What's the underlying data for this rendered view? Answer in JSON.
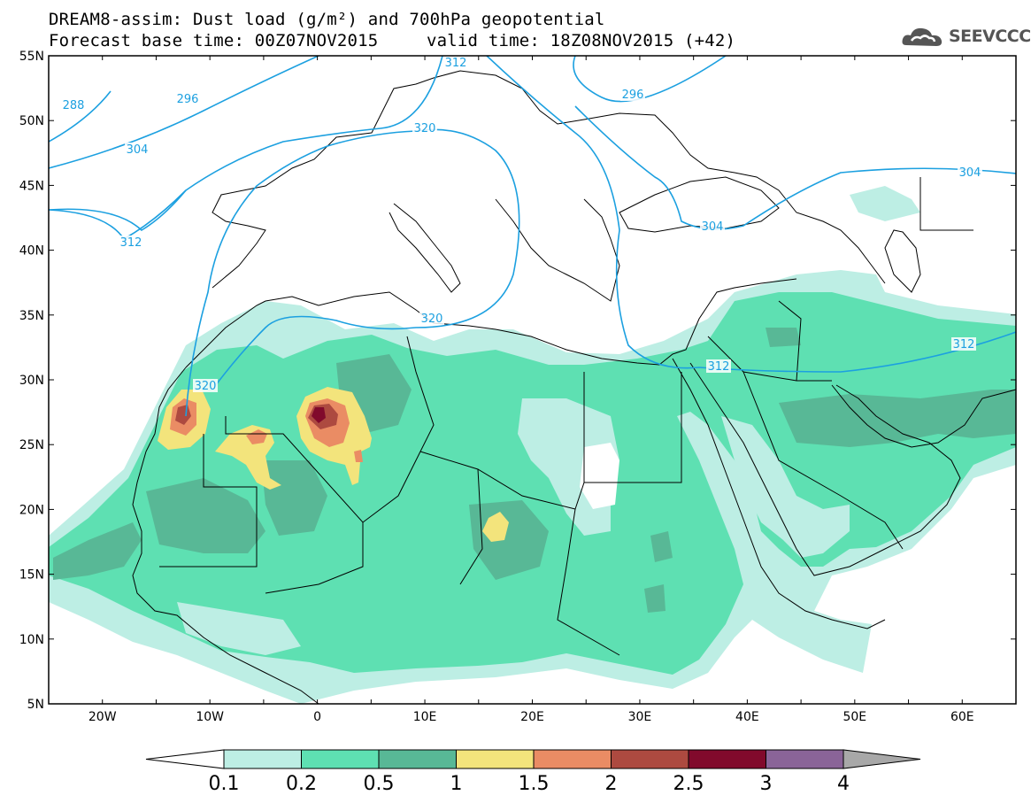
{
  "header": {
    "title_line1": "DREAM8-assim: Dust load (g/m²) and 700hPa geopotential",
    "base_time": "Forecast base time: 00Z07NOV2015",
    "valid_time": "valid time: 18Z08NOV2015 (+42)"
  },
  "logo": {
    "name": "cloud-logo-icon",
    "text": "SEEVCCC"
  },
  "map": {
    "lat_labels": [
      "55N",
      "50N",
      "45N",
      "40N",
      "35N",
      "30N",
      "25N",
      "20N",
      "15N",
      "10N",
      "5N"
    ],
    "lon_labels": [
      "20W",
      "10W",
      "0",
      "10E",
      "20E",
      "30E",
      "40E",
      "50E",
      "60E"
    ],
    "geopotential_labels": [
      "288",
      "296",
      "304",
      "312",
      "320",
      "320",
      "320",
      "296",
      "304",
      "304",
      "312",
      "312",
      "312"
    ]
  },
  "colorbar": {
    "labels": [
      "0.1",
      "0.2",
      "0.5",
      "1",
      "1.5",
      "2",
      "2.5",
      "3",
      "4"
    ],
    "colors": [
      "#ffffff",
      "#bdeee4",
      "#5ee0b2",
      "#58b896",
      "#f3e47c",
      "#ea8c64",
      "#ad4a40",
      "#810a2c",
      "#8a6498",
      "#a8a8a8"
    ]
  },
  "colors": {
    "contour": "#1ca0e0",
    "coast": "#000000",
    "dust_0_1": "#bdeee4",
    "dust_0_2": "#5ee0b2",
    "dust_0_5": "#58b896",
    "dust_1": "#f3e47c",
    "dust_1_5": "#ea8c64",
    "dust_2": "#ad4a40",
    "dust_2_5": "#810a2c"
  }
}
